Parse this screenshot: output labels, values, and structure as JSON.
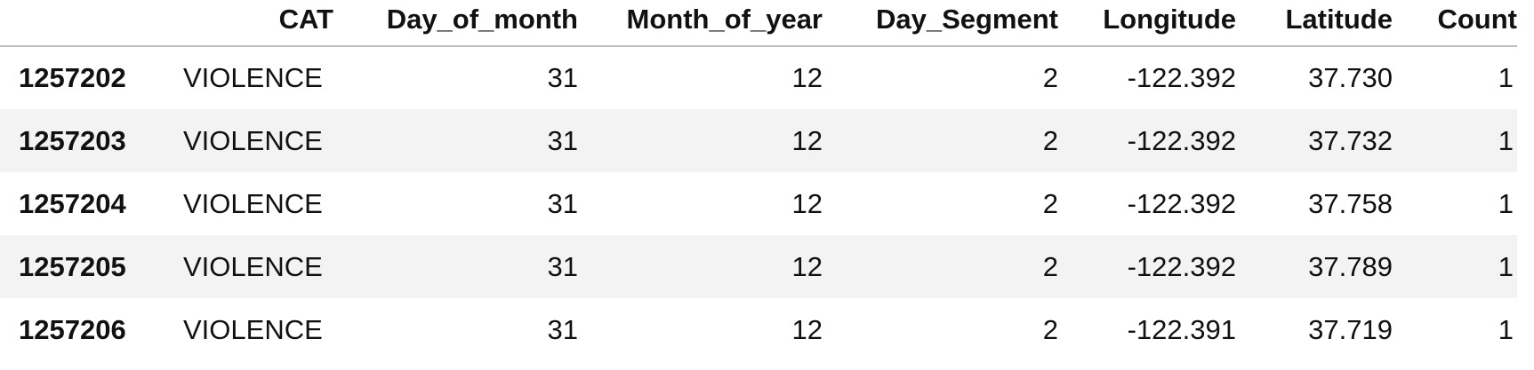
{
  "table": {
    "columns": [
      "",
      "CAT",
      "Day_of_month",
      "Month_of_year",
      "Day_Segment",
      "Longitude",
      "Latitude",
      "Count"
    ],
    "rows": [
      {
        "index": "1257202",
        "CAT": "VIOLENCE",
        "Day_of_month": "31",
        "Month_of_year": "12",
        "Day_Segment": "2",
        "Longitude": "-122.392",
        "Latitude": "37.730",
        "Count": "1"
      },
      {
        "index": "1257203",
        "CAT": "VIOLENCE",
        "Day_of_month": "31",
        "Month_of_year": "12",
        "Day_Segment": "2",
        "Longitude": "-122.392",
        "Latitude": "37.732",
        "Count": "1"
      },
      {
        "index": "1257204",
        "CAT": "VIOLENCE",
        "Day_of_month": "31",
        "Month_of_year": "12",
        "Day_Segment": "2",
        "Longitude": "-122.392",
        "Latitude": "37.758",
        "Count": "1"
      },
      {
        "index": "1257205",
        "CAT": "VIOLENCE",
        "Day_of_month": "31",
        "Month_of_year": "12",
        "Day_Segment": "2",
        "Longitude": "-122.392",
        "Latitude": "37.789",
        "Count": "1"
      },
      {
        "index": "1257206",
        "CAT": "VIOLENCE",
        "Day_of_month": "31",
        "Month_of_year": "12",
        "Day_Segment": "2",
        "Longitude": "-122.391",
        "Latitude": "37.719",
        "Count": "1"
      }
    ]
  },
  "colors": {
    "row_stripe": "#f3f3f3",
    "header_rule": "#bdbdbd",
    "text": "#111111"
  }
}
